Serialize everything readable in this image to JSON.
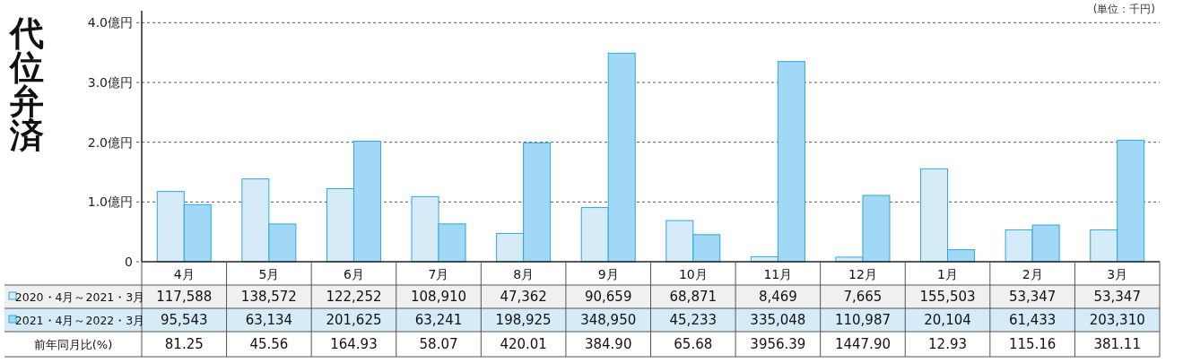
{
  "chart_data": {
    "type": "bar",
    "title": "代位弁済",
    "categories": [
      "4月",
      "5月",
      "6月",
      "7月",
      "8月",
      "9月",
      "10月",
      "11月",
      "12月",
      "1月",
      "2月",
      "3月"
    ],
    "series": [
      {
        "name": "2020・4月～2021・3月",
        "color": "#d5ebf8",
        "values": [
          1.17588,
          1.38572,
          1.22252,
          1.0891,
          0.47362,
          0.90659,
          0.68871,
          0.08469,
          0.07665,
          1.55503,
          0.53347,
          0.53347
        ]
      },
      {
        "name": "2021・4月～2022・3月",
        "color": "#a0d8f5",
        "values": [
          0.95543,
          0.63134,
          2.01625,
          0.63241,
          1.98925,
          3.4895,
          0.45233,
          3.35048,
          1.10987,
          0.20104,
          0.61433,
          2.0331
        ]
      }
    ],
    "ylim": [
      0,
      4.2
    ],
    "yticks": [
      0,
      {
        "value": 1,
        "label": "1.0億円"
      },
      {
        "value": 2,
        "label": "2.0億円"
      },
      {
        "value": 3,
        "label": "3.0億円"
      },
      {
        "value": 4,
        "label": "4.0億円"
      }
    ],
    "grid": "y",
    "legend": "bottom",
    "annotations": [
      "(単位：千円)",
      "前年同月比(%)",
      "81.25",
      "45.56",
      "164.93",
      "58.07",
      "420.01",
      "384.90",
      "65.68",
      "3956.39",
      "1447.90",
      "12.93",
      "115.16",
      "381.11",
      "117,588",
      "138,572",
      "122,252",
      "108,910",
      "47,362",
      "90,659",
      "68,871",
      "8,469",
      "7,665",
      "155,503",
      "53,347",
      "53,347",
      "95,543",
      "63,134",
      "201,625",
      "63,241",
      "198,925",
      "348,950",
      "45,233",
      "335,048",
      "110,987",
      "20,104",
      "61,433",
      "203,310"
    ]
  }
}
